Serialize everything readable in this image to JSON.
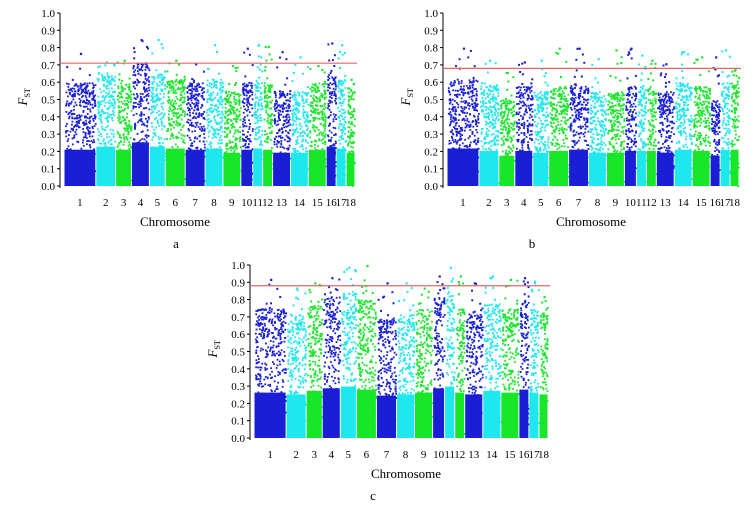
{
  "chart_data": [
    {
      "type": "scatter",
      "panel_label": "a",
      "xlabel": "Chromosome",
      "ylabel_main": "F",
      "ylabel_sub": "ST",
      "ylim": [
        0.0,
        1.0
      ],
      "yticks": [
        "0.0",
        "0.1",
        "0.2",
        "0.3",
        "0.4",
        "0.5",
        "0.6",
        "0.7",
        "0.8",
        "0.9",
        "1.0"
      ],
      "categories": [
        "1",
        "2",
        "3",
        "4",
        "5",
        "6",
        "7",
        "8",
        "9",
        "10",
        "11",
        "12",
        "13",
        "14",
        "15",
        "16",
        "17",
        "18"
      ],
      "threshold": 0.71,
      "chromosome_max": [
        0.77,
        0.72,
        0.73,
        0.85,
        0.85,
        0.73,
        0.71,
        0.82,
        0.7,
        0.8,
        0.82,
        0.81,
        0.78,
        0.75,
        0.7,
        0.83,
        0.82,
        0.62
      ],
      "chromosome_bulk": [
        0.6,
        0.65,
        0.6,
        0.72,
        0.65,
        0.62,
        0.6,
        0.62,
        0.55,
        0.6,
        0.62,
        0.6,
        0.55,
        0.55,
        0.6,
        0.65,
        0.62,
        0.55
      ],
      "grid": false
    },
    {
      "type": "scatter",
      "panel_label": "b",
      "xlabel": "Chromosome",
      "ylabel_main": "F",
      "ylabel_sub": "ST",
      "ylim": [
        0.0,
        1.0
      ],
      "yticks": [
        "0.0",
        "0.1",
        "0.2",
        "0.3",
        "0.4",
        "0.5",
        "0.6",
        "0.7",
        "0.8",
        "0.9",
        "1.0"
      ],
      "categories": [
        "1",
        "2",
        "3",
        "4",
        "5",
        "6",
        "7",
        "8",
        "9",
        "10",
        "11",
        "12",
        "13",
        "14",
        "15",
        "16",
        "17",
        "18"
      ],
      "threshold": 0.68,
      "chromosome_max": [
        0.8,
        0.73,
        0.66,
        0.72,
        0.73,
        0.8,
        0.8,
        0.74,
        0.79,
        0.8,
        0.76,
        0.73,
        0.71,
        0.78,
        0.75,
        0.75,
        0.79,
        0.68
      ],
      "chromosome_bulk": [
        0.62,
        0.58,
        0.5,
        0.58,
        0.55,
        0.58,
        0.6,
        0.55,
        0.55,
        0.58,
        0.58,
        0.58,
        0.55,
        0.6,
        0.58,
        0.5,
        0.6,
        0.6
      ],
      "grid": false
    },
    {
      "type": "scatter",
      "panel_label": "c",
      "xlabel": "Chromosome",
      "ylabel_main": "F",
      "ylabel_sub": "ST",
      "ylim": [
        0.0,
        1.0
      ],
      "yticks": [
        "0.0",
        "0.1",
        "0.2",
        "0.3",
        "0.4",
        "0.5",
        "0.6",
        "0.7",
        "0.8",
        "0.9",
        "1.0"
      ],
      "categories": [
        "1",
        "2",
        "3",
        "4",
        "5",
        "6",
        "7",
        "8",
        "9",
        "10",
        "11",
        "12",
        "13",
        "14",
        "15",
        "16",
        "17",
        "18"
      ],
      "threshold": 0.88,
      "chromosome_max": [
        0.92,
        0.87,
        0.9,
        0.93,
        0.99,
        1.0,
        0.9,
        0.9,
        0.87,
        0.94,
        0.99,
        0.94,
        0.9,
        0.94,
        0.92,
        0.93,
        0.91,
        0.82
      ],
      "chromosome_bulk": [
        0.75,
        0.72,
        0.78,
        0.82,
        0.85,
        0.8,
        0.7,
        0.72,
        0.75,
        0.82,
        0.85,
        0.75,
        0.72,
        0.78,
        0.75,
        0.8,
        0.75,
        0.72
      ],
      "grid": false
    }
  ],
  "colors": [
    "#1a1fd6",
    "#1ee8ee",
    "#18e629"
  ],
  "threshold_color": "#e06868"
}
